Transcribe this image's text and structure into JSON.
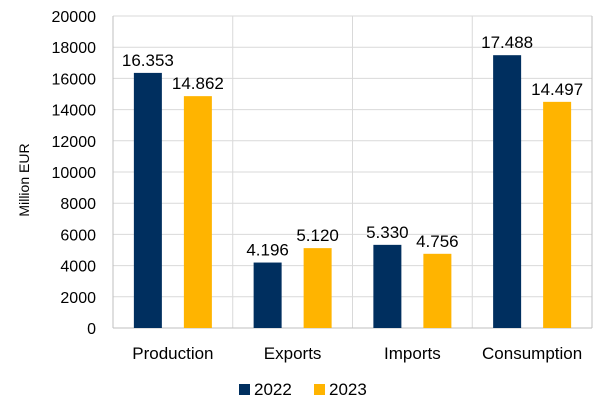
{
  "chart_data": {
    "type": "bar",
    "title": "",
    "xlabel": "",
    "ylabel": "Million EUR",
    "categories": [
      "Production",
      "Exports",
      "Imports",
      "Consumption"
    ],
    "series": [
      {
        "name": "2022",
        "values": [
          16353,
          4196,
          5330,
          17488
        ],
        "labels": [
          "16.353",
          "4.196",
          "5.330",
          "17.488"
        ],
        "color": "#002f5f"
      },
      {
        "name": "2023",
        "values": [
          14862,
          5120,
          4756,
          14497
        ],
        "labels": [
          "14.862",
          "5.120",
          "4.756",
          "14.497"
        ],
        "color": "#ffb400"
      }
    ],
    "ylim": [
      0,
      20000
    ],
    "yticks": [
      0,
      2000,
      4000,
      6000,
      8000,
      10000,
      12000,
      14000,
      16000,
      18000,
      20000
    ],
    "ytick_labels": [
      "0",
      "2000",
      "4000",
      "6000",
      "8000",
      "10000",
      "12000",
      "14000",
      "16000",
      "18000",
      "20000"
    ],
    "grid": true,
    "legend_position": "bottom"
  }
}
